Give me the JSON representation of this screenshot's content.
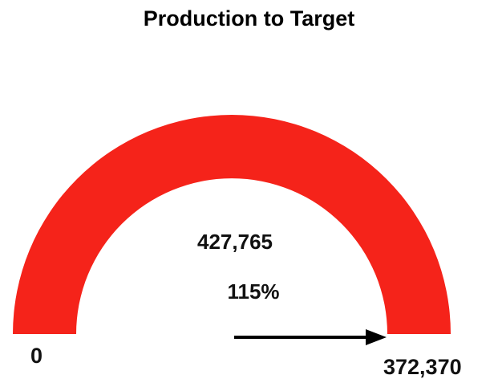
{
  "chart_data": {
    "type": "gauge",
    "title": "Production to Target",
    "value": 427765,
    "value_label": "427,765",
    "percent_label": "115%",
    "min": 0,
    "min_label": "0",
    "target": 372370,
    "target_label": "372,370",
    "gauge_color": "#f5231a",
    "arrow_color": "#000000"
  }
}
